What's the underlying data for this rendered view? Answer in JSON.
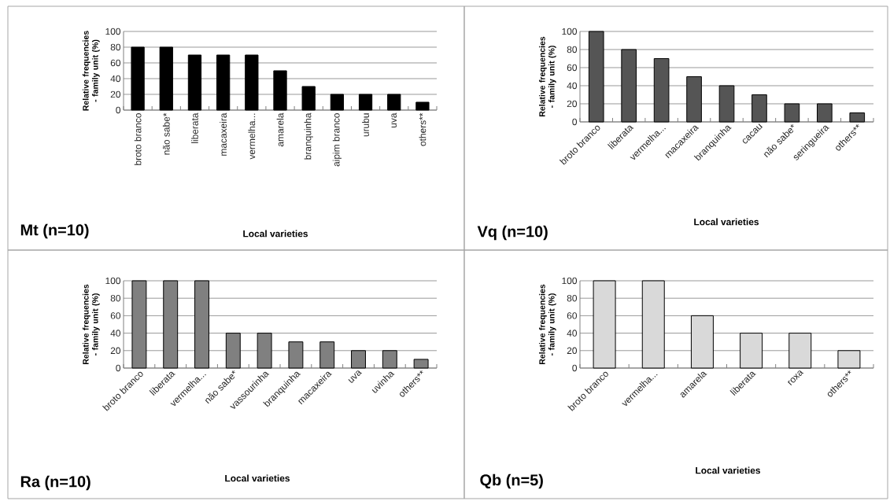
{
  "chart_data": [
    {
      "type": "bar",
      "title": "Mt (n=10)",
      "xlabel": "Local varieties",
      "ylabel": "Relative frequencies - family unit (%)",
      "categories": [
        "broto branco",
        "não sabe*",
        "liberata",
        "macaxeira",
        "vermelha...",
        "amarela",
        "branquinha",
        "aipim branco",
        "urubu",
        "uva",
        "others**"
      ],
      "values": [
        80,
        80,
        70,
        70,
        70,
        50,
        30,
        20,
        20,
        20,
        10
      ],
      "color": "#000000",
      "ylim": [
        0,
        100
      ],
      "yticks": [
        0,
        20,
        40,
        60,
        80,
        100
      ],
      "grid": "y"
    },
    {
      "type": "bar",
      "title": "Vq (n=10)",
      "xlabel": "Local varieties",
      "ylabel": "Relative frequencies - family unit (%)",
      "categories": [
        "broto branco",
        "liberata",
        "vermelha...",
        "macaxeira",
        "branquinha",
        "cacau",
        "não sabe*",
        "seringueira",
        "others**"
      ],
      "values": [
        100,
        80,
        70,
        50,
        40,
        30,
        20,
        20,
        10
      ],
      "color": "#555555",
      "ylim": [
        0,
        100
      ],
      "yticks": [
        0,
        20,
        40,
        60,
        80,
        100
      ],
      "grid": "y"
    },
    {
      "type": "bar",
      "title": "Ra (n=10)",
      "xlabel": "Local varieties",
      "ylabel": "Relative frequencies - family unit (%)",
      "categories": [
        "broto branco",
        "liberata",
        "vermelha...",
        "não sabe*",
        "vassourinha",
        "branquinha",
        "macaxeira",
        "uva",
        "uvinha",
        "others**"
      ],
      "values": [
        100,
        100,
        100,
        40,
        40,
        30,
        30,
        20,
        20,
        10
      ],
      "color": "#808080",
      "ylim": [
        0,
        100
      ],
      "yticks": [
        0,
        20,
        40,
        60,
        80,
        100
      ],
      "grid": "y"
    },
    {
      "type": "bar",
      "title": "Qb (n=5)",
      "xlabel": "Local varieties",
      "ylabel": "Relative frequencies - family unit (%)",
      "categories": [
        "broto branco",
        "vermelha...",
        "amarela",
        "liberata",
        "roxa",
        "others**"
      ],
      "values": [
        100,
        100,
        60,
        40,
        40,
        20
      ],
      "color": "#d9d9d9",
      "ylim": [
        0,
        100
      ],
      "yticks": [
        0,
        20,
        40,
        60,
        80,
        100
      ],
      "grid": "y"
    }
  ]
}
